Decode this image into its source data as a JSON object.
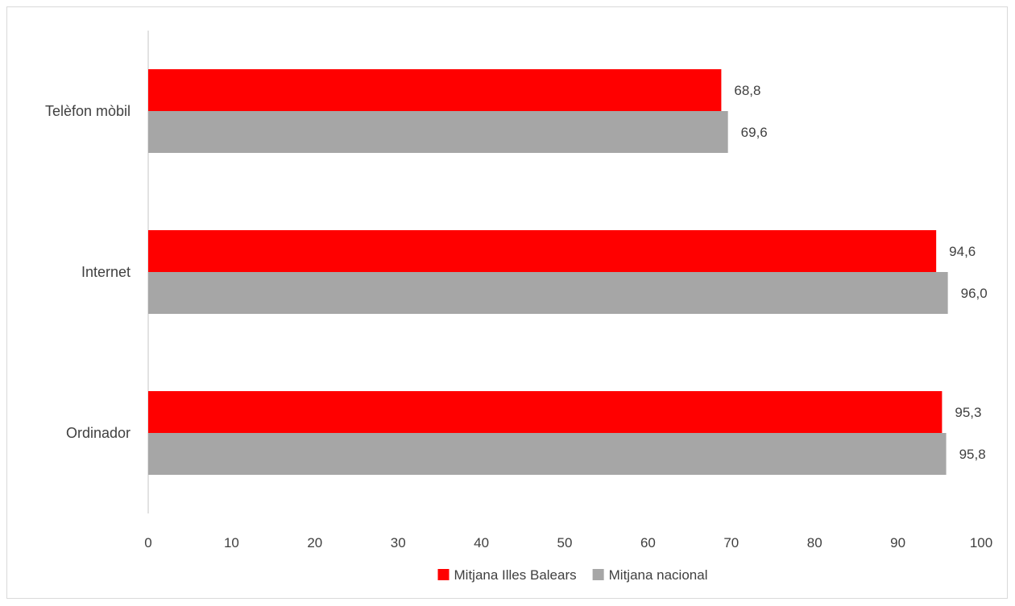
{
  "chart_data": {
    "type": "bar",
    "orientation": "horizontal",
    "title": "",
    "xlabel": "",
    "ylabel": "",
    "categories": [
      "Telèfon mòbil",
      "Internet",
      "Ordinador"
    ],
    "series": [
      {
        "name": "Mitjana Illes Balears",
        "color": "#ff0000",
        "values": [
          68.8,
          94.6,
          95.3
        ],
        "labels": [
          "68,8",
          "94,6",
          "95,3"
        ]
      },
      {
        "name": "Mitjana nacional",
        "color": "#a6a6a6",
        "values": [
          69.6,
          96.0,
          95.8
        ],
        "labels": [
          "69,6",
          "96,0",
          "95,8"
        ]
      }
    ],
    "xlim": [
      0,
      100
    ],
    "x_ticks": [
      "0",
      "10",
      "20",
      "30",
      "40",
      "50",
      "60",
      "70",
      "80",
      "90",
      "100"
    ],
    "grid": false,
    "legend_position": "bottom"
  }
}
